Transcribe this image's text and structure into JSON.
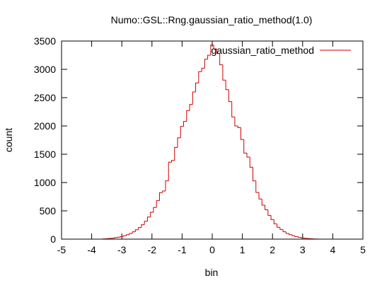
{
  "chart_data": {
    "type": "line",
    "title": "Numo::GSL::Rng.gaussian_ratio_method(1.0)",
    "xlabel": "bin",
    "ylabel": "count",
    "xlim": [
      -5,
      5
    ],
    "ylim": [
      0,
      3500
    ],
    "x_ticks": [
      "-5",
      "-4",
      "-3",
      "-2",
      "-1",
      "0",
      "1",
      "2",
      "3",
      "4",
      "5"
    ],
    "y_ticks": [
      "0",
      "500",
      "1000",
      "1500",
      "2000",
      "2500",
      "3000",
      "3500"
    ],
    "legend_position": "top-right",
    "grid": false,
    "series": [
      {
        "name": "gaussian_ratio_method",
        "color": "#cc0000",
        "step": true,
        "bin_width": 0.1,
        "x": [
          -3.6,
          -3.5,
          -3.4,
          -3.3,
          -3.2,
          -3.1,
          -3.0,
          -2.9,
          -2.8,
          -2.7,
          -2.6,
          -2.5,
          -2.4,
          -2.3,
          -2.2,
          -2.1,
          -2.0,
          -1.9,
          -1.8,
          -1.7,
          -1.6,
          -1.5,
          -1.4,
          -1.3,
          -1.2,
          -1.1,
          -1.0,
          -0.9,
          -0.8,
          -0.7,
          -0.6,
          -0.5,
          -0.4,
          -0.3,
          -0.2,
          -0.1,
          0.0,
          0.1,
          0.2,
          0.3,
          0.4,
          0.5,
          0.6,
          0.7,
          0.8,
          0.9,
          1.0,
          1.1,
          1.2,
          1.3,
          1.4,
          1.5,
          1.6,
          1.7,
          1.8,
          1.9,
          2.0,
          2.1,
          2.2,
          2.3,
          2.4,
          2.5,
          2.6,
          2.7,
          2.8,
          2.9,
          3.0,
          3.1,
          3.2,
          3.3,
          3.4,
          3.5,
          3.6
        ],
        "values": [
          4,
          7,
          11,
          16,
          26,
          35,
          45,
          60,
          78,
          100,
          130,
          165,
          205,
          255,
          315,
          390,
          475,
          560,
          680,
          820,
          850,
          1030,
          1360,
          1390,
          1620,
          1790,
          1990,
          2080,
          2270,
          2380,
          2600,
          2760,
          2960,
          3020,
          3180,
          3250,
          3430,
          3360,
          3280,
          3080,
          2810,
          2640,
          2430,
          2160,
          2000,
          1970,
          1760,
          1520,
          1450,
          1270,
          1030,
          825,
          710,
          600,
          520,
          420,
          345,
          270,
          210,
          170,
          130,
          100,
          78,
          60,
          45,
          33,
          24,
          15,
          10,
          6,
          3,
          1,
          0
        ]
      }
    ]
  }
}
